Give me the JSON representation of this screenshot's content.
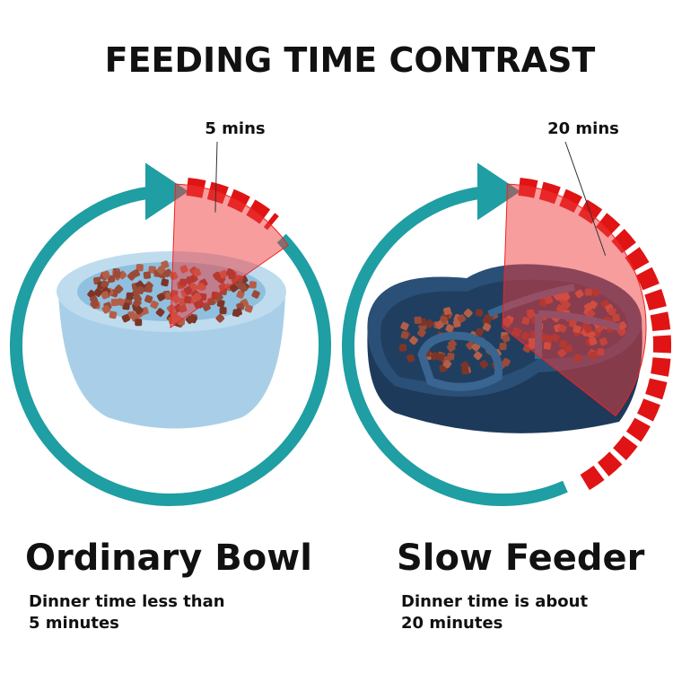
{
  "title": "FEEDING TIME CONTRAST",
  "panels": [
    {
      "time_label": "5 mins",
      "name": "Ordinary Bowl",
      "description": [
        "Dinner time less than",
        "5 minutes"
      ]
    },
    {
      "time_label": "20 mins",
      "name": "Slow Feeder",
      "description": [
        "Dinner time is about",
        "20 minutes"
      ]
    }
  ]
}
